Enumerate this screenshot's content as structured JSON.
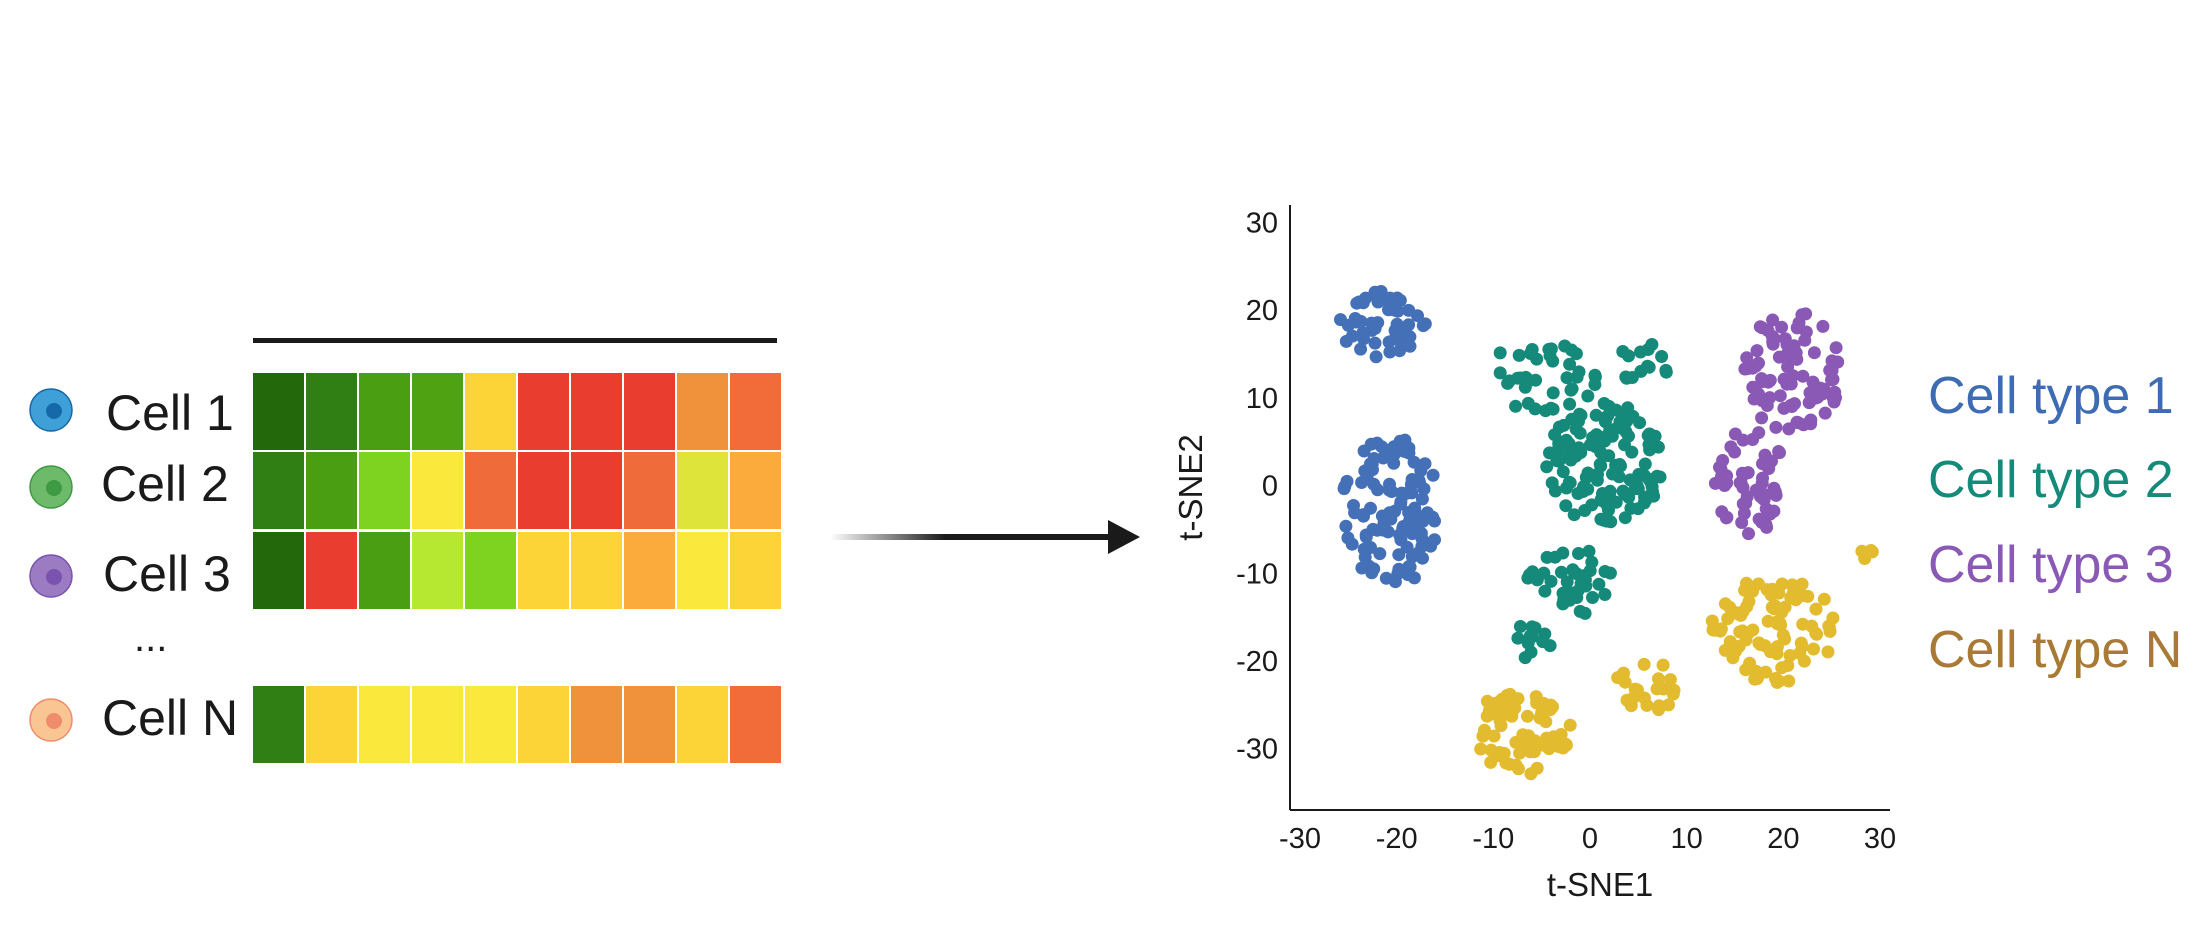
{
  "cells": [
    {
      "label": "Cell 1",
      "icon": "blue-cell-icon",
      "outer": "#3fa0d8",
      "inner": "#1569a8",
      "row": [
        "#24680c",
        "#2f7f14",
        "#4a9e12",
        "#4fa212",
        "#fdd437",
        "#e93e2f",
        "#e93e2f",
        "#e93e2f",
        "#f0923b",
        "#f16c38"
      ]
    },
    {
      "label": "Cell 2",
      "icon": "green-cell-icon",
      "outer": "#6dbb6a",
      "inner": "#3f9a44",
      "row": [
        "#2f7f14",
        "#4a9e12",
        "#7ed321",
        "#fbe83c",
        "#ef6b3a",
        "#e93e2f",
        "#e93e2f",
        "#ef6b3a",
        "#dfe43a",
        "#fbab3b"
      ]
    },
    {
      "label": "Cell 3",
      "icon": "purple-cell-icon",
      "outer": "#9b7cc2",
      "inner": "#7a52b0",
      "row": [
        "#24680c",
        "#e93e2f",
        "#4a9e12",
        "#b6e832",
        "#7ed321",
        "#fdd437",
        "#fdd437",
        "#fbab3b",
        "#fbe83c",
        "#fdd437"
      ]
    },
    {
      "label": "Cell N",
      "icon": "orange-cell-icon",
      "outer": "#f8c593",
      "inner": "#f08c6b",
      "row": [
        "#2f7f14",
        "#fdd437",
        "#fbe83c",
        "#fbe83c",
        "#fbe83c",
        "#fdd437",
        "#f0923b",
        "#f0923b",
        "#fdd437",
        "#f16c38"
      ]
    }
  ],
  "ellipsis": "...",
  "colors": {
    "cell_type_1": "#4470b8",
    "cell_type_2": "#158a7a",
    "cell_type_3": "#8a58b5",
    "cell_type_n": "#e2bb2f",
    "cell_type_n_label": "#a87a35",
    "arrow": "#1a1a1a",
    "axis": "#1a1a1a"
  },
  "legend": [
    {
      "label": "Cell type 1",
      "color": "#3d6cb3"
    },
    {
      "label": "Cell type 2",
      "color": "#158a7a"
    },
    {
      "label": "Cell type 3",
      "color": "#8a58b5"
    },
    {
      "label": "Cell type N",
      "color": "#a87a35"
    }
  ],
  "chart_data": {
    "type": "scatter",
    "xlabel": "t-SNE1",
    "ylabel": "t-SNE2",
    "xlim": [
      -30,
      30
    ],
    "ylim": [
      -37,
      32
    ],
    "xticks": [
      "-30",
      "-20",
      "-10",
      "0",
      "10",
      "20",
      "30"
    ],
    "xtick_values": [
      -30,
      -20,
      -10,
      0,
      10,
      20,
      30
    ],
    "yticks": [
      "30",
      "20",
      "10",
      "0",
      "-10",
      "-20",
      "-30"
    ],
    "ytick_values": [
      30,
      20,
      10,
      0,
      -10,
      -20,
      -30
    ],
    "series": [
      {
        "name": "Cell type 1",
        "color": "#4470b8",
        "clusters": [
          {
            "center": [
              -21.5,
              18.5
            ],
            "spread": [
              4.5,
              4.0
            ],
            "count": 55
          },
          {
            "center": [
              -20.5,
              -3.0
            ],
            "spread": [
              5.2,
              8.5
            ],
            "count": 110
          }
        ]
      },
      {
        "name": "Cell type 2",
        "color": "#158a7a",
        "clusters": [
          {
            "center": [
              -5.0,
              12.5
            ],
            "spread": [
              6.0,
              4.0
            ],
            "count": 40
          },
          {
            "center": [
              1.5,
              2.5
            ],
            "spread": [
              6.0,
              7.0
            ],
            "count": 130
          },
          {
            "center": [
              5.5,
              14.0
            ],
            "spread": [
              2.8,
              2.5
            ],
            "count": 14
          },
          {
            "center": [
              -2.0,
              -11.0
            ],
            "spread": [
              4.5,
              4.0
            ],
            "count": 40
          },
          {
            "center": [
              -6.5,
              -17.5
            ],
            "spread": [
              2.8,
              2.5
            ],
            "count": 12
          }
        ]
      },
      {
        "name": "Cell type 3",
        "color": "#8a58b5",
        "clusters": [
          {
            "center": [
              21.0,
              13.0
            ],
            "spread": [
              5.0,
              7.0
            ],
            "count": 85
          },
          {
            "center": [
              16.5,
              0.5
            ],
            "spread": [
              3.8,
              6.0
            ],
            "count": 55
          }
        ]
      },
      {
        "name": "Cell type N",
        "color": "#e2bb2f",
        "clusters": [
          {
            "center": [
              -7.0,
              -28.0
            ],
            "spread": [
              5.0,
              5.0
            ],
            "count": 75
          },
          {
            "center": [
              6.0,
              -23.0
            ],
            "spread": [
              3.6,
              2.8
            ],
            "count": 22
          },
          {
            "center": [
              19.0,
              -16.5
            ],
            "spread": [
              6.5,
              6.0
            ],
            "count": 90
          },
          {
            "center": [
              28.5,
              -7.5
            ],
            "spread": [
              1.5,
              1.5
            ],
            "count": 5
          }
        ]
      }
    ]
  }
}
